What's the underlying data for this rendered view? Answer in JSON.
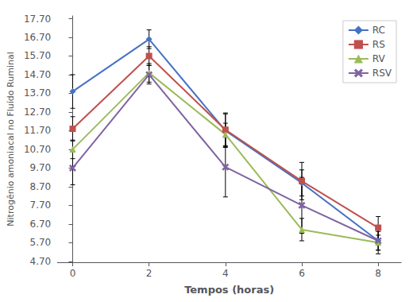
{
  "chart_data": {
    "type": "line",
    "x": [
      0,
      2,
      4,
      6,
      8
    ],
    "series": [
      {
        "name": "RC",
        "color": "#4472C4",
        "marker": "diamond",
        "values": [
          13.8,
          16.6,
          11.7,
          8.9,
          5.8
        ],
        "errors": [
          0.9,
          0.5,
          0.9,
          0.7,
          0.5
        ]
      },
      {
        "name": "RS",
        "color": "#C0504D",
        "marker": "square",
        "values": [
          11.8,
          15.7,
          11.75,
          9.0,
          6.5
        ],
        "errors": [
          0.65,
          0.5,
          0.9,
          1.0,
          0.6
        ]
      },
      {
        "name": "RV",
        "color": "#9BBB59",
        "marker": "triangle",
        "values": [
          10.7,
          14.8,
          11.5,
          6.4,
          5.7
        ],
        "errors": [
          0.5,
          0.5,
          0.6,
          0.6,
          0.4
        ]
      },
      {
        "name": "RSV",
        "color": "#8064A2",
        "marker": "x",
        "values": [
          9.7,
          14.7,
          9.75,
          7.7,
          5.8
        ],
        "errors": [
          0.9,
          0.5,
          1.6,
          1.5,
          0.7
        ]
      }
    ],
    "xlabel": "Tempos (horas)",
    "ylabel": "Nitrogênio amoniacal no Fluído Ruminal",
    "xlim": [
      -0.4,
      8.6
    ],
    "xticks": [
      0,
      2,
      4,
      6,
      8
    ],
    "ylim": [
      4.65,
      17.85
    ],
    "yticks": [
      {
        "value": 4.7,
        "label": "4.70"
      },
      {
        "value": 5.7,
        "label": "5.70"
      },
      {
        "value": 6.7,
        "label": "6.70"
      },
      {
        "value": 7.7,
        "label": "7.70"
      },
      {
        "value": 8.7,
        "label": "8.70"
      },
      {
        "value": 9.7,
        "label": "9.70"
      },
      {
        "value": 10.7,
        "label": "10.70"
      },
      {
        "value": 11.7,
        "label": "11.70"
      },
      {
        "value": 12.7,
        "label": "12.70"
      },
      {
        "value": 13.7,
        "label": "13.70"
      },
      {
        "value": 14.7,
        "label": "14.70"
      },
      {
        "value": 15.7,
        "label": "15.70"
      },
      {
        "value": 16.7,
        "label": "16.70"
      },
      {
        "value": 17.7,
        "label": "17.70"
      }
    ],
    "legend": "upper right",
    "grid": false
  }
}
